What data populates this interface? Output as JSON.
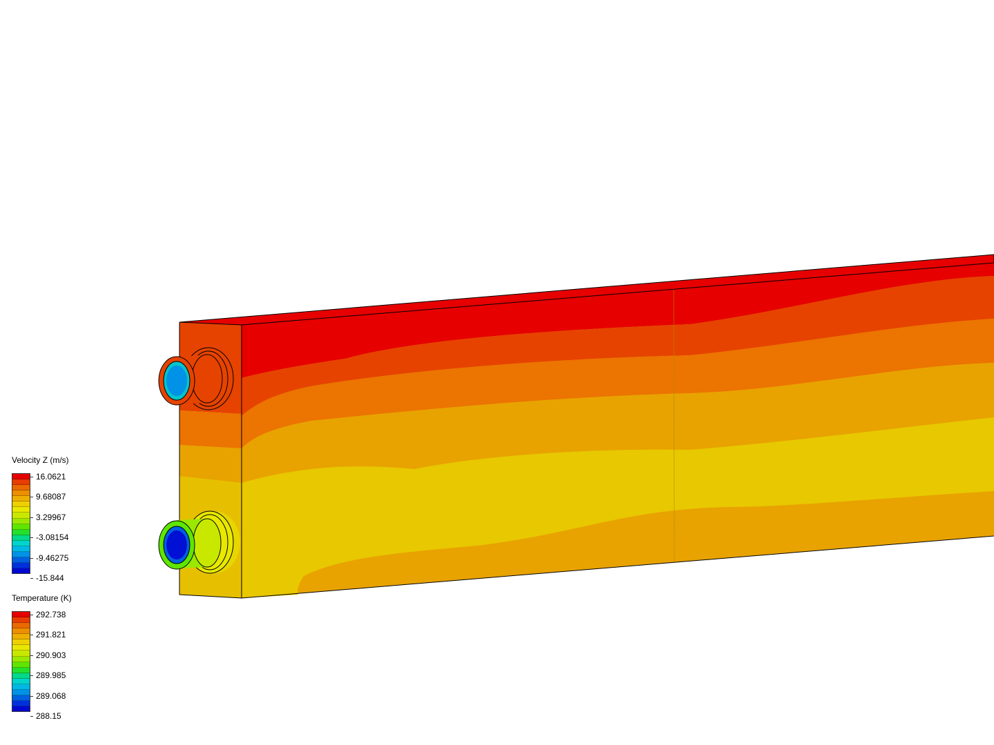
{
  "legends": [
    {
      "title": "Velocity Z (m/s)",
      "labels": [
        "16.0621",
        "9.68087",
        "3.29967",
        "-3.08154",
        "-9.46275",
        "-15.844"
      ]
    },
    {
      "title": "Temperature (K)",
      "labels": [
        "292.738",
        "291.821",
        "290.903",
        "289.985",
        "289.068",
        "288.15"
      ]
    }
  ],
  "colors": {
    "scale": [
      "#e60000",
      "#e83c00",
      "#ea6a00",
      "#ec8f00",
      "#eeb000",
      "#eed000",
      "#e8e800",
      "#c8e800",
      "#9ae800",
      "#5ee600",
      "#22e02c",
      "#00d88a",
      "#00d4cc",
      "#00b8e6",
      "#0092e6",
      "#0060e0",
      "#0030dc",
      "#0008d0"
    ],
    "contour_bands": [
      "#e60000",
      "#e64300",
      "#ec7400",
      "#e8a300",
      "#e8c800"
    ]
  }
}
